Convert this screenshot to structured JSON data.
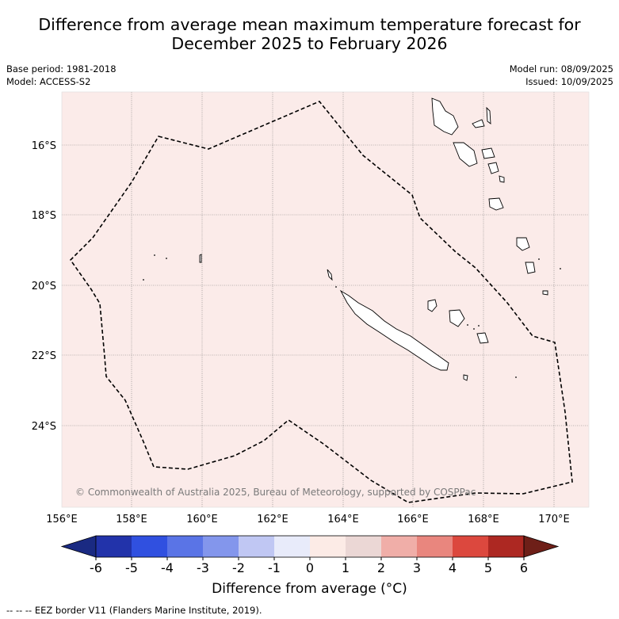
{
  "title_line1": "Difference from average mean maximum temperature forecast for",
  "title_line2": "December 2025 to February 2026",
  "base_period": "Base period: 1981-2018",
  "model": "Model: ACCESS-S2",
  "model_run": "Model run: 08/09/2025",
  "issued": "Issued: 10/09/2025",
  "copyright": "© Commonwealth of Australia 2025, Bureau of Meteorology, supported by COSPPac",
  "lat_labels": [
    "16°S",
    "18°S",
    "20°S",
    "22°S",
    "24°S"
  ],
  "lon_labels": [
    "156°E",
    "158°E",
    "160°E",
    "162°E",
    "164°E",
    "166°E",
    "168°E",
    "170°E"
  ],
  "map_fill_color": "#fbebe9",
  "colorbar": {
    "label": "Difference from average (°C)",
    "ticks": [
      "-6",
      "-5",
      "-4",
      "-3",
      "-2",
      "-1",
      "0",
      "1",
      "2",
      "3",
      "4",
      "5",
      "6"
    ],
    "colors": [
      "#1a2a82",
      "#2233aa",
      "#3050e0",
      "#5a74e6",
      "#8396ec",
      "#c0c7f3",
      "#e8ebfa",
      "#fcebe6",
      "#ebd7d5",
      "#f0aea8",
      "#e9867e",
      "#dc483e",
      "#ad2822",
      "#6e1f18"
    ]
  },
  "footnote": "--  --  -- EEZ border V11 (Flanders Marine Institute, 2019)."
}
